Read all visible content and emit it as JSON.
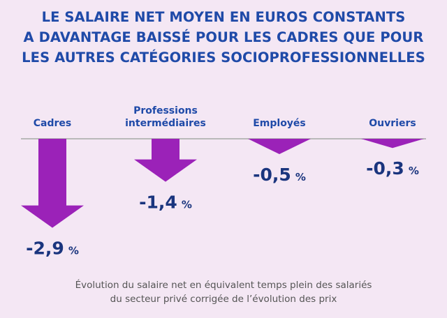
{
  "title_lines": [
    "LE SALAIRE NET MOYEN EN EUROS CONSTANTS",
    "A DAVANTAGE BAISSÉ POUR LES CADRES QUE POUR",
    "LES AUTRES CATÉGORIES SOCIOPROFESSIONNELLES"
  ],
  "caption_lines": [
    "Évolution du salaire net en équivalent temps plein des salariés",
    "du secteur privé corrigée de l’évolution des prix"
  ],
  "colors": {
    "background": "#f4e7f4",
    "arrow": "#9b22b8",
    "title": "#1f4aa8",
    "value": "#1a357e",
    "baseline": "#b9b9b9"
  },
  "chart_data": {
    "type": "bar",
    "orientation": "downward arrows",
    "unit": "%",
    "categories": [
      {
        "lines": [
          "Cadres"
        ]
      },
      {
        "lines": [
          "Professions",
          "intermédiaires"
        ]
      },
      {
        "lines": [
          "Employés"
        ]
      },
      {
        "lines": [
          "Ouvriers"
        ]
      }
    ],
    "values": [
      -2.9,
      -1.4,
      -0.5,
      -0.3
    ],
    "value_labels": [
      "-2,9",
      "-1,4",
      "-0,5",
      "-0,3"
    ],
    "value_suffix": "%"
  }
}
